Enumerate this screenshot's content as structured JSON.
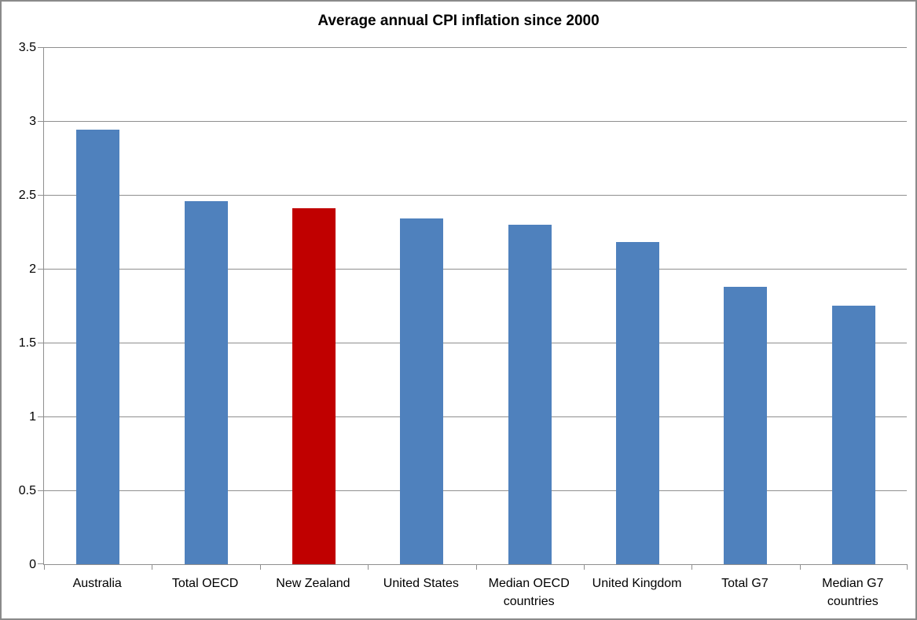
{
  "chart_data": {
    "type": "bar",
    "title": "Average annual CPI inflation since 2000",
    "categories": [
      "Australia",
      "Total OECD",
      "New Zealand",
      "United States",
      "Median OECD countries",
      "United Kingdom",
      "Total G7",
      "Median G7 countries"
    ],
    "values": [
      2.94,
      2.46,
      2.41,
      2.34,
      2.3,
      2.18,
      1.88,
      1.75
    ],
    "highlight_category": "New Zealand",
    "highlight_index": 2,
    "bar_color": "#4F81BD",
    "highlight_color": "#C00000",
    "xlabel": "",
    "ylabel": "",
    "ylim": [
      0,
      3.5
    ],
    "yticks": [
      0,
      0.5,
      1,
      1.5,
      2,
      2.5,
      3,
      3.5
    ],
    "ytick_labels": [
      "0",
      "0.5",
      "1",
      "1.5",
      "2",
      "2.5",
      "3",
      "3.5"
    ],
    "grid": "horizontal gridlines on",
    "legend": "none",
    "gridline_color": "#8F8F8F",
    "axis_color": "#8F8F8F"
  }
}
